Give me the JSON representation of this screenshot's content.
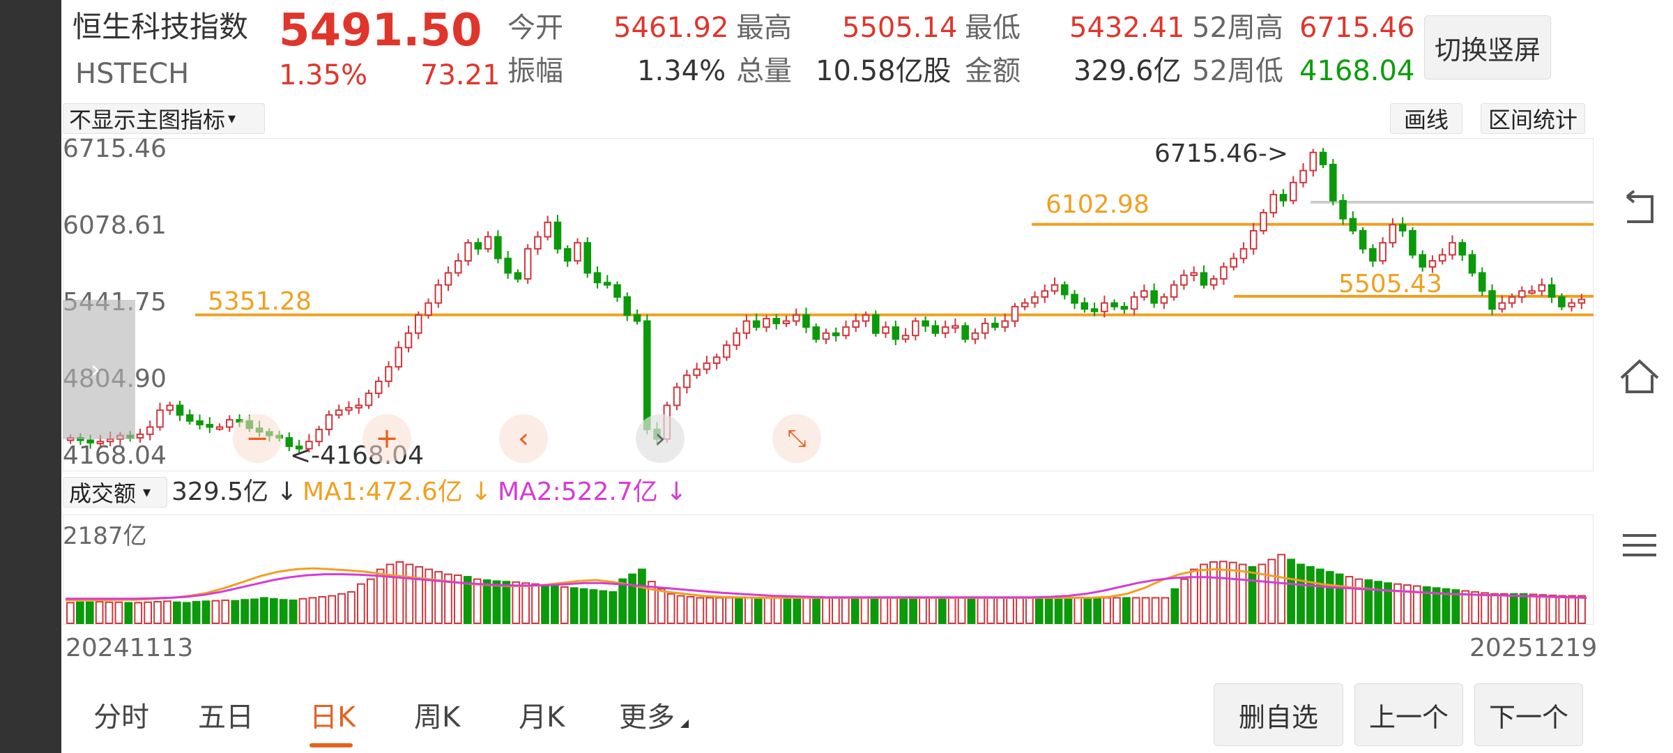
{
  "header": {
    "name": "恒生科技指数",
    "code": "HSTECH",
    "price": "5491.50",
    "change_pct": "1.35%",
    "change": "73.21",
    "open_label": "今开",
    "open": "5461.92",
    "high_label": "最高",
    "high": "5505.14",
    "low_label": "最低",
    "low": "5432.41",
    "wk52_high_label": "52周高",
    "wk52_high": "6715.46",
    "amp_label": "振幅",
    "amp": "1.34%",
    "vol_label": "总量",
    "vol": "10.58亿股",
    "amount_label": "金额",
    "amount": "329.6亿",
    "wk52_low_label": "52周低",
    "wk52_low": "4168.04",
    "switch_label": "切换竖屏"
  },
  "toolbar": {
    "indicator_select": "不显示主图指标",
    "draw_label": "画线",
    "range_label": "区间统计"
  },
  "volume_bar": {
    "select": "成交额",
    "value": "329.5亿 ↓",
    "ma1": "MA1:472.6亿 ↓",
    "ma2": "MA2:522.7亿 ↓",
    "top_label": "2187亿"
  },
  "dates": {
    "start": "20241113",
    "end": "20251219"
  },
  "tabs": [
    "分时",
    "五日",
    "日K",
    "周K",
    "月K",
    "更多"
  ],
  "actions": {
    "delete": "删自选",
    "prev": "上一个",
    "next": "下一个"
  },
  "chart_data": {
    "type": "candlestick",
    "y_ticks": [
      "6715.46",
      "6078.61",
      "5441.75",
      "4804.90",
      "4168.04"
    ],
    "ylim": [
      4168.04,
      6715.46
    ],
    "max_annotation": "6715.46->",
    "min_annotation": "<-4168.04",
    "levels": [
      {
        "label": "5351.28",
        "value": 5351.28
      },
      {
        "label": "6102.98",
        "value": 6102.98
      },
      {
        "label": "5505.43",
        "value": 5505.43
      }
    ],
    "close_series": [
      4330,
      4310,
      4290,
      4300,
      4320,
      4350,
      4330,
      4360,
      4420,
      4560,
      4600,
      4520,
      4470,
      4440,
      4420,
      4420,
      4480,
      4470,
      4410,
      4380,
      4350,
      4330,
      4260,
      4240,
      4300,
      4400,
      4520,
      4560,
      4580,
      4600,
      4700,
      4800,
      4920,
      5080,
      5200,
      5350,
      5450,
      5600,
      5700,
      5800,
      5950,
      5900,
      6000,
      5820,
      5700,
      5650,
      5900,
      6000,
      6120,
      5900,
      5800,
      5950,
      5700,
      5620,
      5600,
      5500,
      5350,
      5300,
      4400,
      4320,
      4600,
      4750,
      4850,
      4900,
      4950,
      5000,
      5100,
      5200,
      5300,
      5250,
      5320,
      5280,
      5300,
      5350,
      5250,
      5150,
      5200,
      5180,
      5250,
      5300,
      5350,
      5200,
      5250,
      5150,
      5180,
      5300,
      5260,
      5200,
      5250,
      5260,
      5150,
      5200,
      5280,
      5250,
      5300,
      5420,
      5450,
      5500,
      5550,
      5600,
      5520,
      5450,
      5400,
      5380,
      5450,
      5420,
      5400,
      5500,
      5550,
      5450,
      5500,
      5600,
      5680,
      5700,
      5600,
      5650,
      5750,
      5820,
      5900,
      6050,
      6200,
      6350,
      6300,
      6450,
      6550,
      6700,
      6600,
      6300,
      6150,
      6050,
      5900,
      5800,
      5950,
      6100,
      6050,
      5850,
      5750,
      5800,
      5850,
      5950,
      5850,
      5700,
      5550,
      5400,
      5450,
      5500,
      5550,
      5550,
      5600,
      5500,
      5420,
      5450,
      5480
    ],
    "volume_ylim": [
      0,
      2187
    ],
    "volume_series": [
      420,
      430,
      430,
      440,
      430,
      430,
      420,
      420,
      430,
      440,
      450,
      430,
      420,
      440,
      450,
      460,
      470,
      460,
      480,
      490,
      520,
      500,
      480,
      470,
      500,
      520,
      540,
      560,
      600,
      640,
      800,
      900,
      1100,
      1200,
      1250,
      1200,
      1150,
      1100,
      1050,
      1000,
      980,
      950,
      900,
      880,
      860,
      850,
      840,
      820,
      800,
      780,
      760,
      740,
      720,
      700,
      680,
      660,
      640,
      900,
      1000,
      1100,
      850,
      700,
      600,
      560,
      540,
      520,
      520,
      520,
      520,
      520,
      520,
      520,
      520,
      520,
      520,
      520,
      520,
      520,
      520,
      520,
      520,
      520,
      520,
      520,
      520,
      520,
      520,
      520,
      520,
      520,
      520,
      520,
      520,
      520,
      520,
      520,
      520,
      520,
      520,
      520,
      520,
      520,
      520,
      520,
      520,
      520,
      520,
      520,
      520,
      520,
      520,
      520,
      520,
      520,
      700,
      900,
      1100,
      1200,
      1250,
      1260,
      1240,
      1200,
      1150,
      1200,
      1300,
      1400,
      1300,
      1200,
      1150,
      1100,
      1050,
      1000,
      950,
      900,
      880,
      850,
      820,
      800,
      780,
      760,
      740,
      720,
      700,
      680,
      660,
      640,
      620,
      600,
      600,
      600,
      600,
      590,
      580,
      570,
      560,
      560,
      560
    ],
    "ma1": [
      470,
      470,
      470,
      480,
      480,
      500,
      520,
      560,
      620,
      720,
      840,
      960,
      1050,
      1100,
      1120,
      1100,
      1080,
      1050,
      1000,
      960,
      920,
      880,
      840,
      800,
      780,
      760,
      760,
      780,
      820,
      860,
      880,
      840,
      780,
      700,
      640,
      600,
      560,
      540,
      530,
      520,
      520,
      520,
      520,
      520,
      520,
      520,
      520,
      520,
      520,
      520,
      520,
      520,
      520,
      520,
      520,
      520,
      520,
      520,
      520,
      540,
      600,
      720,
      880,
      1000,
      1080,
      1100,
      1080,
      1040,
      980,
      920,
      860,
      800,
      760,
      720,
      690,
      660,
      640,
      620,
      600,
      590,
      580,
      570,
      560,
      550,
      540,
      530,
      520
    ],
    "ma2": [
      500,
      500,
      500,
      500,
      500,
      510,
      520,
      540,
      580,
      640,
      720,
      800,
      880,
      940,
      980,
      1000,
      1000,
      990,
      970,
      940,
      910,
      880,
      850,
      820,
      800,
      780,
      770,
      770,
      780,
      800,
      820,
      820,
      800,
      770,
      740,
      710,
      680,
      650,
      620,
      600,
      580,
      560,
      550,
      540,
      530,
      530,
      530,
      530,
      530,
      530,
      530,
      530,
      530,
      530,
      530,
      530,
      530,
      540,
      560,
      600,
      660,
      740,
      820,
      880,
      920,
      940,
      940,
      920,
      890,
      860,
      830,
      800,
      770,
      740,
      720,
      700,
      680,
      660,
      640,
      620,
      600,
      590,
      580,
      570,
      560,
      550,
      540,
      530,
      520
    ]
  }
}
